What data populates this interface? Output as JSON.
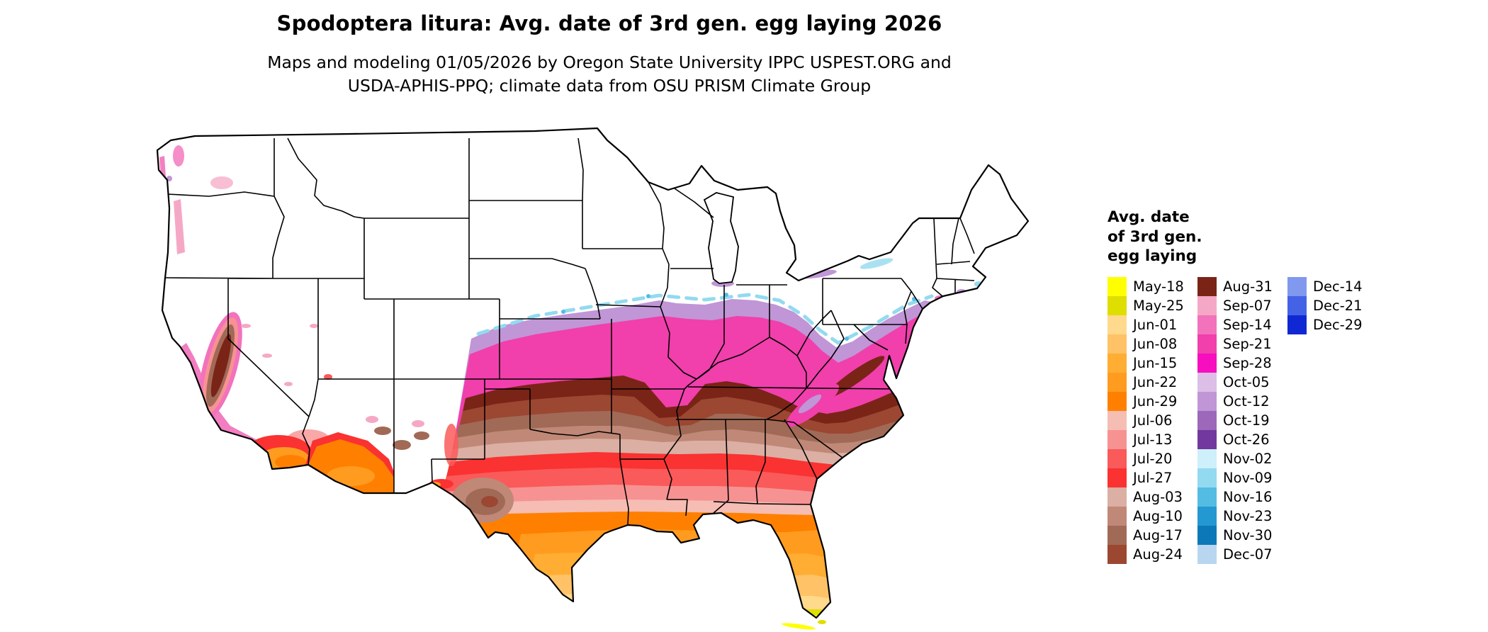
{
  "header": {
    "title": "Spodoptera litura: Avg. date of 3rd gen. egg laying 2026",
    "subtitle_line1": "Maps and modeling 01/05/2026 by Oregon State University IPPC USPEST.ORG and",
    "subtitle_line2": "USDA-APHIS-PPQ; climate data from OSU PRISM Climate Group"
  },
  "legend": {
    "title": "Avg. date of 3rd gen. egg laying",
    "columns": [
      [
        {
          "label": "May-18",
          "color": "#FFFF00"
        },
        {
          "label": "May-25",
          "color": "#DEDE00"
        },
        {
          "label": "Jun-01",
          "color": "#FFD98C"
        },
        {
          "label": "Jun-08",
          "color": "#FFC266"
        },
        {
          "label": "Jun-15",
          "color": "#FFAD33"
        },
        {
          "label": "Jun-22",
          "color": "#FF9C1F"
        },
        {
          "label": "Jun-29",
          "color": "#FF8000"
        },
        {
          "label": "Jul-06",
          "color": "#F5BDB3"
        },
        {
          "label": "Jul-13",
          "color": "#F79292"
        },
        {
          "label": "Jul-20",
          "color": "#FA5A5A"
        },
        {
          "label": "Jul-27",
          "color": "#FA3232"
        },
        {
          "label": "Aug-03",
          "color": "#DBAFA3"
        },
        {
          "label": "Aug-10",
          "color": "#C08877"
        },
        {
          "label": "Aug-17",
          "color": "#A06A57"
        },
        {
          "label": "Aug-24",
          "color": "#9C4732"
        }
      ],
      [
        {
          "label": "Aug-31",
          "color": "#7A2417"
        },
        {
          "label": "Sep-07",
          "color": "#F5A8C5"
        },
        {
          "label": "Sep-14",
          "color": "#F272BC"
        },
        {
          "label": "Sep-21",
          "color": "#F13FAC"
        },
        {
          "label": "Sep-28",
          "color": "#F70EBE"
        },
        {
          "label": "Oct-05",
          "color": "#DCBEE6"
        },
        {
          "label": "Oct-12",
          "color": "#C096D6"
        },
        {
          "label": "Oct-19",
          "color": "#9C68BA"
        },
        {
          "label": "Oct-26",
          "color": "#7238A0"
        },
        {
          "label": "Nov-02",
          "color": "#CDF0FA"
        },
        {
          "label": "Nov-09",
          "color": "#93DAF0"
        },
        {
          "label": "Nov-16",
          "color": "#54BCE3"
        },
        {
          "label": "Nov-23",
          "color": "#2498D0"
        },
        {
          "label": "Nov-30",
          "color": "#0C78B8"
        },
        {
          "label": "Dec-07",
          "color": "#B8D6F0"
        }
      ],
      [
        {
          "label": "Dec-14",
          "color": "#8098EE"
        },
        {
          "label": "Dec-21",
          "color": "#4462E6"
        },
        {
          "label": "Dec-29",
          "color": "#1028D4"
        }
      ]
    ]
  }
}
